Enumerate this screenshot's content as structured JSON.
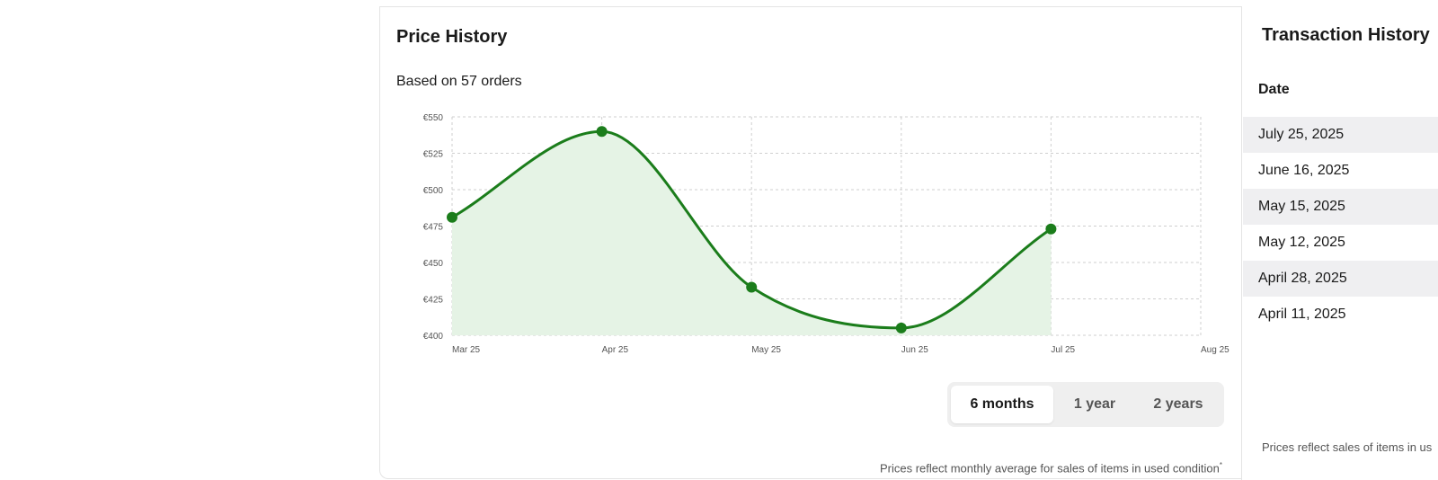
{
  "price_history": {
    "title": "Price History",
    "subtitle": "Based on 57 orders",
    "footnote": "Prices reflect monthly average for sales of items in used condition",
    "footnote_mark": "*",
    "range_options": [
      {
        "label": "6 months",
        "active": true
      },
      {
        "label": "1 year",
        "active": false
      },
      {
        "label": "2 years",
        "active": false
      }
    ]
  },
  "chart_data": {
    "type": "area",
    "x": [
      "Mar 25",
      "Apr 25",
      "May 25",
      "Jun 25",
      "Jul 25"
    ],
    "x_ticks": [
      "Mar 25",
      "Apr 25",
      "May 25",
      "Jun 25",
      "Jul 25",
      "Aug 25"
    ],
    "series": [
      {
        "values": [
          481,
          540,
          433,
          405,
          473
        ]
      }
    ],
    "y_ticks": [
      "€400",
      "€425",
      "€450",
      "€475",
      "€500",
      "€525",
      "€550"
    ],
    "ylim": [
      400,
      550
    ],
    "grid": true,
    "line_color": "#1b7d1b",
    "fill_color": "#e5f3e5"
  },
  "transactions": {
    "title": "Transaction History",
    "column_header": "Date",
    "rows": [
      "July 25, 2025",
      "June 16, 2025",
      "May 15, 2025",
      "May 12, 2025",
      "April 28, 2025",
      "April 11, 2025"
    ],
    "note": "Prices reflect sales of items in us"
  }
}
